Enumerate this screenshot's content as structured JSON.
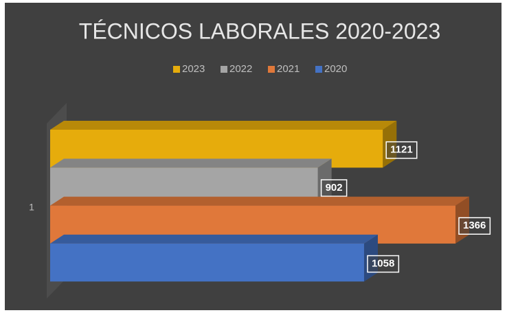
{
  "chart_data": {
    "type": "bar",
    "orientation": "horizontal",
    "style": "3d",
    "title": "TÉCNICOS LABORALES 2020-2023",
    "categories": [
      "1"
    ],
    "legend": "top",
    "series": [
      {
        "name": "2023",
        "color": "#e6ac0c",
        "values": [
          1121
        ]
      },
      {
        "name": "2022",
        "color": "#a5a5a5",
        "values": [
          902
        ]
      },
      {
        "name": "2021",
        "color": "#e0783a",
        "values": [
          1366
        ]
      },
      {
        "name": "2020",
        "color": "#4472c4",
        "values": [
          1058
        ]
      }
    ]
  }
}
